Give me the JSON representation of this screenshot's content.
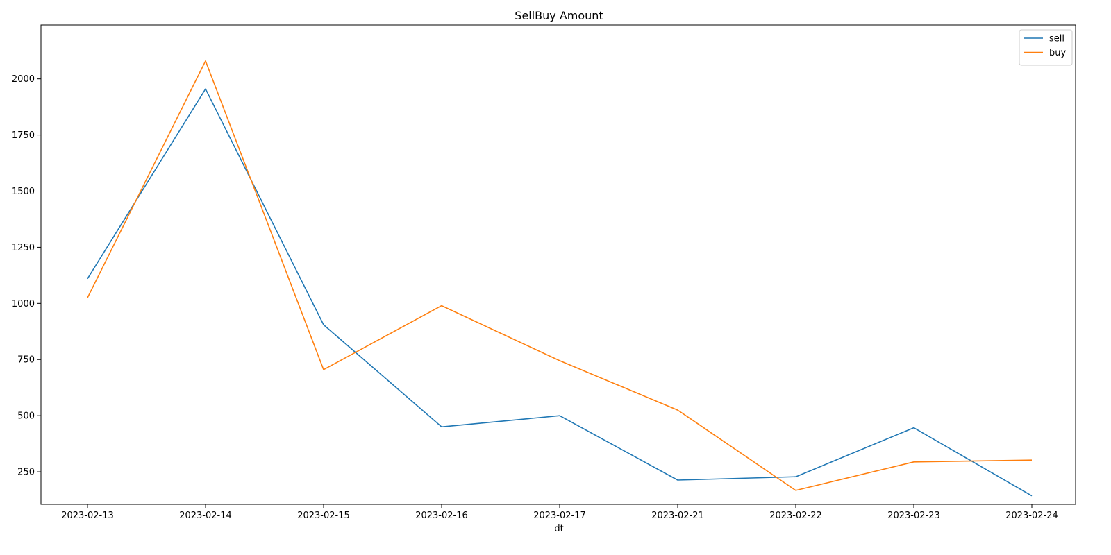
{
  "chart_data": {
    "type": "line",
    "title": "SellBuy Amount",
    "xlabel": "dt",
    "ylabel": "",
    "categories": [
      "2023-02-13",
      "2023-02-14",
      "2023-02-15",
      "2023-02-16",
      "2023-02-17",
      "2023-02-21",
      "2023-02-22",
      "2023-02-23",
      "2023-02-24"
    ],
    "series": [
      {
        "name": "sell",
        "color": "#1f77b4",
        "values": [
          1110,
          1955,
          905,
          450,
          500,
          213,
          228,
          446,
          143
        ]
      },
      {
        "name": "buy",
        "color": "#ff7f0e",
        "values": [
          1025,
          2080,
          705,
          990,
          745,
          525,
          167,
          294,
          302
        ]
      }
    ],
    "ylim": [
      105,
      2240
    ],
    "yticks": [
      250,
      500,
      750,
      1000,
      1250,
      1500,
      1750,
      2000
    ],
    "grid": false,
    "legend": "top-right"
  }
}
